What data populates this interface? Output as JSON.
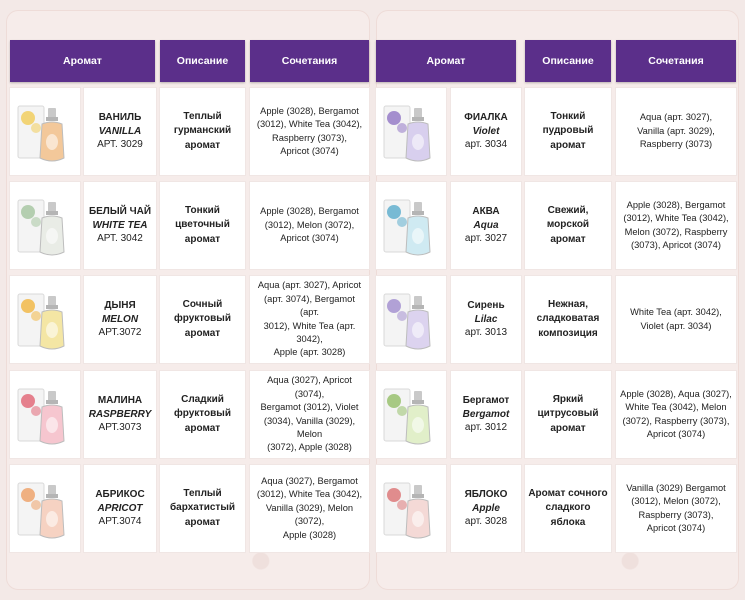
{
  "headers": {
    "left": {
      "aroma": "Аромат",
      "desc": "Описание",
      "combo": "Сочетания"
    },
    "right": {
      "aroma": "Аромат",
      "desc": "Описание",
      "combo": "Сочетания"
    }
  },
  "left_rows": [
    {
      "name_ru": "ВАНИЛЬ",
      "name_en": "VANILLA",
      "art": "АРТ. 3029",
      "desc": [
        "Теплый",
        "гурманский",
        "аромат"
      ],
      "combo": [
        "Apple (3028), Bergamot",
        "(3012), White Tea (3042),",
        "Raspberry (3073),",
        "Apricot (3074)"
      ],
      "liquid_color": "#f3c89a",
      "accent_color": "#f2c94c"
    },
    {
      "name_ru": "БЕЛЫЙ ЧАЙ",
      "name_en": "WHITE TEA",
      "art": "АРТ. 3042",
      "desc": [
        "Тонкий",
        "цветочный",
        "аромат"
      ],
      "combo": [
        "Apple (3028), Bergamot",
        "(3012), Melon (3072),",
        "Apricot (3074)"
      ],
      "liquid_color": "#e9ece6",
      "accent_color": "#9fc29a"
    },
    {
      "name_ru": "ДЫНЯ",
      "name_en": "MELON",
      "art": "АРТ.3072",
      "desc": [
        "Сочный",
        "фруктовый",
        "аромат"
      ],
      "combo": [
        "Aqua (арт. 3027), Apricot",
        "(арт. 3074), Bergamot (арт.",
        "3012), White Tea (арт. 3042),",
        "Apple (арт. 3028)"
      ],
      "liquid_color": "#f4e6a4",
      "accent_color": "#f2b233"
    },
    {
      "name_ru": "МАЛИНА",
      "name_en": "RASPBERRY",
      "art": "АРТ.3073",
      "desc": [
        "Сладкий",
        "фруктовый",
        "аромат"
      ],
      "combo": [
        "Aqua (3027), Apricot (3074),",
        "Bergamot (3012), Violet",
        "(3034), Vanilla (3029), Melon",
        "(3072), Apple (3028)"
      ],
      "liquid_color": "#f6c6cf",
      "accent_color": "#e05a6b"
    },
    {
      "name_ru": "АБРИКОС",
      "name_en": "APRICOT",
      "art": "АРТ.3074",
      "desc": [
        "Теплый",
        "бархатистый",
        "аромат"
      ],
      "combo": [
        "Aqua (3027), Bergamot",
        "(3012), White Tea (3042),",
        "Vanilla (3029), Melon (3072),",
        "Apple (3028)"
      ],
      "liquid_color": "#f6d2c2",
      "accent_color": "#ee9a5b"
    }
  ],
  "right_rows": [
    {
      "name_ru": "ФИАЛКА",
      "name_en": "Violet",
      "art": "арт. 3034",
      "desc": [
        "Тонкий",
        "пудровый",
        "аромат"
      ],
      "combo": [
        "Aqua (арт. 3027),",
        "Vanilla (арт. 3029),",
        "Raspberry (3073)"
      ],
      "liquid_color": "#d8cfee",
      "accent_color": "#8a6cc2"
    },
    {
      "name_ru": "АКВА",
      "name_en": "Aqua",
      "art": "арт. 3027",
      "desc": [
        "Свежий,",
        "морской",
        "аромат"
      ],
      "combo": [
        "Apple (3028), Bergamot",
        "(3012), White Tea (3042),",
        "Melon (3072), Raspberry",
        "(3073), Apricot (3074)"
      ],
      "liquid_color": "#cfeaf2",
      "accent_color": "#4fa7c9"
    },
    {
      "name_ru": "Сирень",
      "name_en": "Lilac",
      "art": "арт. 3013",
      "desc": [
        "Нежная,",
        "сладковатая",
        "композиция"
      ],
      "combo": [
        "White Tea (арт. 3042),",
        "Violet (арт. 3034)"
      ],
      "liquid_color": "#dcd3ef",
      "accent_color": "#9b86cc"
    },
    {
      "name_ru": "Бергамот",
      "name_en": "Bergamot",
      "art": "арт. 3012",
      "desc": [
        "Яркий",
        "цитрусовый",
        "аромат"
      ],
      "combo": [
        "Apple (3028), Aqua (3027),",
        "White Tea (3042), Melon",
        "(3072), Raspberry (3073),",
        "Apricot (3074)"
      ],
      "liquid_color": "#e1efc9",
      "accent_color": "#8dbb5e"
    },
    {
      "name_ru": "ЯБЛОКО",
      "name_en": "Apple",
      "art": "арт. 3028",
      "desc": [
        "Аромат сочного",
        "сладкого",
        "яблока"
      ],
      "combo": [
        "Vanilla (3029) Bergamot",
        "(3012), Melon (3072),",
        "Raspberry (3073),",
        "Apricot (3074)"
      ],
      "liquid_color": "#f4d9d6",
      "accent_color": "#d9696b"
    }
  ]
}
